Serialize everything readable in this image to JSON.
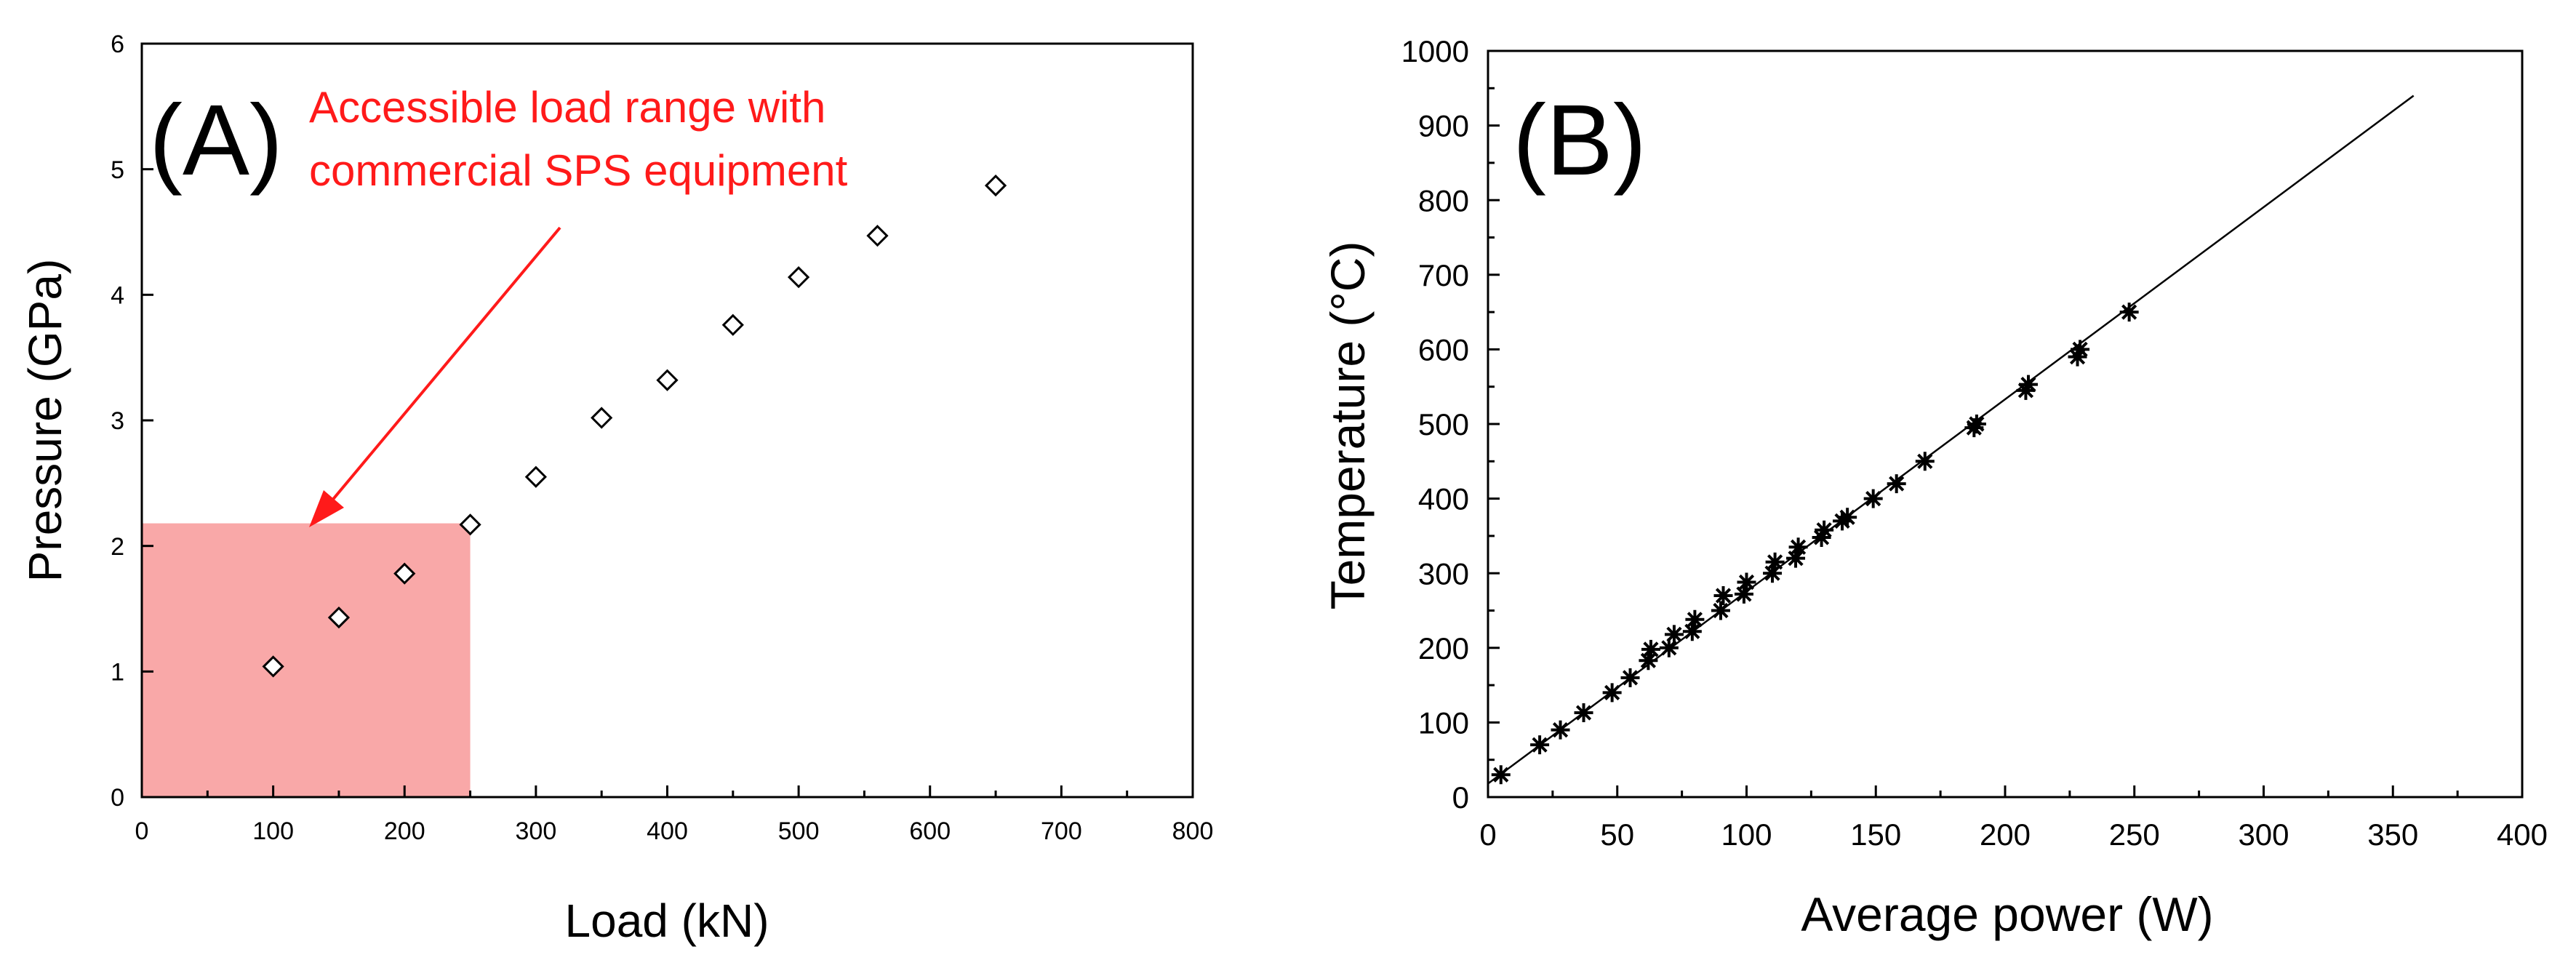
{
  "chart_data": [
    {
      "type": "scatter",
      "panel_label": "(A)",
      "xlabel": "Load (kN)",
      "ylabel": "Pressure (GPa)",
      "xlim": [
        0,
        800
      ],
      "ylim": [
        0,
        6
      ],
      "x_ticks": [
        0,
        100,
        200,
        300,
        400,
        500,
        600,
        700,
        800
      ],
      "y_ticks": [
        0,
        1,
        2,
        3,
        4,
        5,
        6
      ],
      "marker": "open-diamond",
      "grid": false,
      "series": [
        {
          "points": [
            {
              "x": 100,
              "y": 1.04
            },
            {
              "x": 150,
              "y": 1.43
            },
            {
              "x": 200,
              "y": 1.78
            },
            {
              "x": 250,
              "y": 2.17
            },
            {
              "x": 300,
              "y": 2.55
            },
            {
              "x": 350,
              "y": 3.02
            },
            {
              "x": 400,
              "y": 3.32
            },
            {
              "x": 450,
              "y": 3.76
            },
            {
              "x": 500,
              "y": 4.14
            },
            {
              "x": 560,
              "y": 4.47
            },
            {
              "x": 650,
              "y": 4.87
            }
          ]
        }
      ],
      "shaded_region": {
        "x": [
          0,
          250
        ],
        "y": [
          0,
          2.18
        ],
        "color": "#f9a8a8"
      },
      "annotation": {
        "lines": [
          "Accessible load range with",
          "commercial SPS equipment"
        ],
        "color": "#ff1a1a"
      }
    },
    {
      "type": "scatter",
      "panel_label": "(B)",
      "xlabel": "Average power (W)",
      "ylabel": "Temperature (°C)",
      "xlim": [
        0,
        400
      ],
      "ylim": [
        0,
        1000
      ],
      "x_ticks": [
        0,
        50,
        100,
        150,
        200,
        250,
        300,
        350,
        400
      ],
      "y_ticks": [
        0,
        100,
        200,
        300,
        400,
        500,
        600,
        700,
        800,
        900,
        1000
      ],
      "marker": "star",
      "grid": false,
      "series": [
        {
          "points": [
            {
              "x": 5,
              "y": 30
            },
            {
              "x": 20,
              "y": 70
            },
            {
              "x": 28,
              "y": 90
            },
            {
              "x": 37,
              "y": 113
            },
            {
              "x": 48,
              "y": 140
            },
            {
              "x": 55,
              "y": 160
            },
            {
              "x": 62,
              "y": 183
            },
            {
              "x": 63,
              "y": 198
            },
            {
              "x": 70,
              "y": 200
            },
            {
              "x": 72,
              "y": 218
            },
            {
              "x": 79,
              "y": 222
            },
            {
              "x": 80,
              "y": 238
            },
            {
              "x": 90,
              "y": 250
            },
            {
              "x": 91,
              "y": 270
            },
            {
              "x": 99,
              "y": 272
            },
            {
              "x": 100,
              "y": 288
            },
            {
              "x": 110,
              "y": 300
            },
            {
              "x": 111,
              "y": 315
            },
            {
              "x": 119,
              "y": 320
            },
            {
              "x": 120,
              "y": 335
            },
            {
              "x": 129,
              "y": 348
            },
            {
              "x": 130,
              "y": 358
            },
            {
              "x": 137,
              "y": 370
            },
            {
              "x": 139,
              "y": 375
            },
            {
              "x": 149,
              "y": 400
            },
            {
              "x": 158,
              "y": 420
            },
            {
              "x": 169,
              "y": 450
            },
            {
              "x": 188,
              "y": 495
            },
            {
              "x": 189,
              "y": 500
            },
            {
              "x": 208,
              "y": 545
            },
            {
              "x": 209,
              "y": 553
            },
            {
              "x": 228,
              "y": 590
            },
            {
              "x": 229,
              "y": 600
            },
            {
              "x": 248,
              "y": 650
            }
          ]
        }
      ],
      "fit_line": {
        "x": [
          0,
          358
        ],
        "y": [
          18,
          940
        ]
      }
    }
  ]
}
